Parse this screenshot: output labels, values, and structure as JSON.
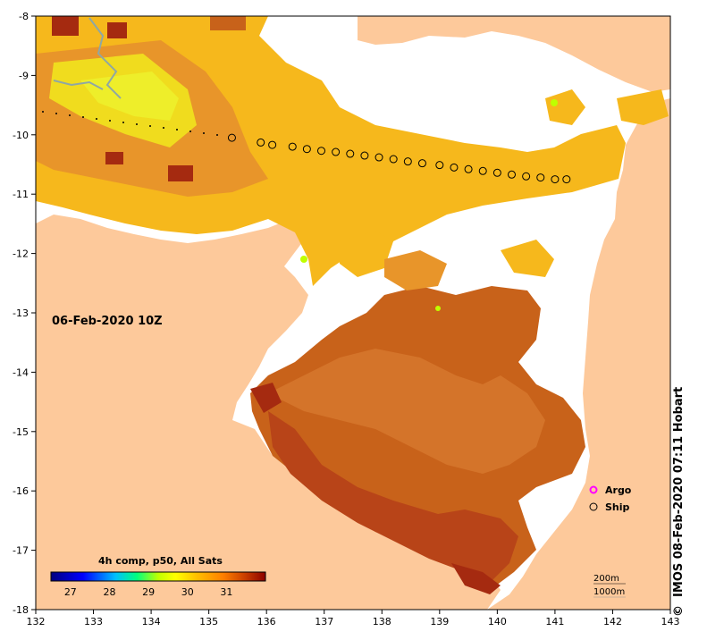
{
  "map": {
    "timestamp_label": "06-Feb-2020 10Z",
    "x_ticks": [
      "132",
      "133",
      "134",
      "135",
      "136",
      "137",
      "138",
      "139",
      "140",
      "141",
      "142",
      "143"
    ],
    "y_ticks": [
      "-8",
      "-9",
      "-10",
      "-11",
      "-12",
      "-13",
      "-14",
      "-15",
      "-16",
      "-17",
      "-18"
    ],
    "colorbar": {
      "title": "4h comp, p50, All Sats",
      "labels": [
        "27",
        "28",
        "29",
        "30",
        "31"
      ],
      "stops": [
        "#00007f",
        "#0000ff",
        "#00bfff",
        "#00ff7f",
        "#bfff00",
        "#ffff00",
        "#ffbf00",
        "#ff8000",
        "#cc4000",
        "#8b0000"
      ]
    },
    "legend": {
      "argo": "Argo",
      "ship": "Ship"
    },
    "depth_contours": {
      "shallow": "200m",
      "deep": "1000m"
    },
    "credit": "IMOS 08-Feb-2020 07:11 Hobart",
    "copyright_symbol": "©",
    "colors": {
      "land": "#fdc99b",
      "cloud": "#ffffff",
      "warm_sst": "#c8621a",
      "hot_sst": "#a52a10",
      "mid_sst": "#f6b81c",
      "cool_sst": "#f0dc1e"
    }
  },
  "chart_data": {
    "type": "heatmap",
    "title": "4h comp, p50, All Sats",
    "date": "06-Feb-2020 10Z",
    "xlim": [
      132,
      143
    ],
    "ylim": [
      -18,
      -8
    ],
    "colorbar_range": [
      26.5,
      32
    ],
    "ship_track": [
      {
        "lon": 135.4,
        "lat": -10.05
      },
      {
        "lon": 135.9,
        "lat": -10.13
      },
      {
        "lon": 136.1,
        "lat": -10.17
      },
      {
        "lon": 136.45,
        "lat": -10.2
      },
      {
        "lon": 136.7,
        "lat": -10.24
      },
      {
        "lon": 136.95,
        "lat": -10.27
      },
      {
        "lon": 137.2,
        "lat": -10.29
      },
      {
        "lon": 137.45,
        "lat": -10.32
      },
      {
        "lon": 137.7,
        "lat": -10.35
      },
      {
        "lon": 137.95,
        "lat": -10.38
      },
      {
        "lon": 138.2,
        "lat": -10.41
      },
      {
        "lon": 138.45,
        "lat": -10.45
      },
      {
        "lon": 138.7,
        "lat": -10.48
      },
      {
        "lon": 139.0,
        "lat": -10.51
      },
      {
        "lon": 139.25,
        "lat": -10.55
      },
      {
        "lon": 139.5,
        "lat": -10.58
      },
      {
        "lon": 139.75,
        "lat": -10.61
      },
      {
        "lon": 140.0,
        "lat": -10.64
      },
      {
        "lon": 140.25,
        "lat": -10.67
      },
      {
        "lon": 140.5,
        "lat": -10.7
      },
      {
        "lon": 140.75,
        "lat": -10.72
      },
      {
        "lon": 141.0,
        "lat": -10.75
      },
      {
        "lon": 141.2,
        "lat": -10.75
      }
    ]
  }
}
